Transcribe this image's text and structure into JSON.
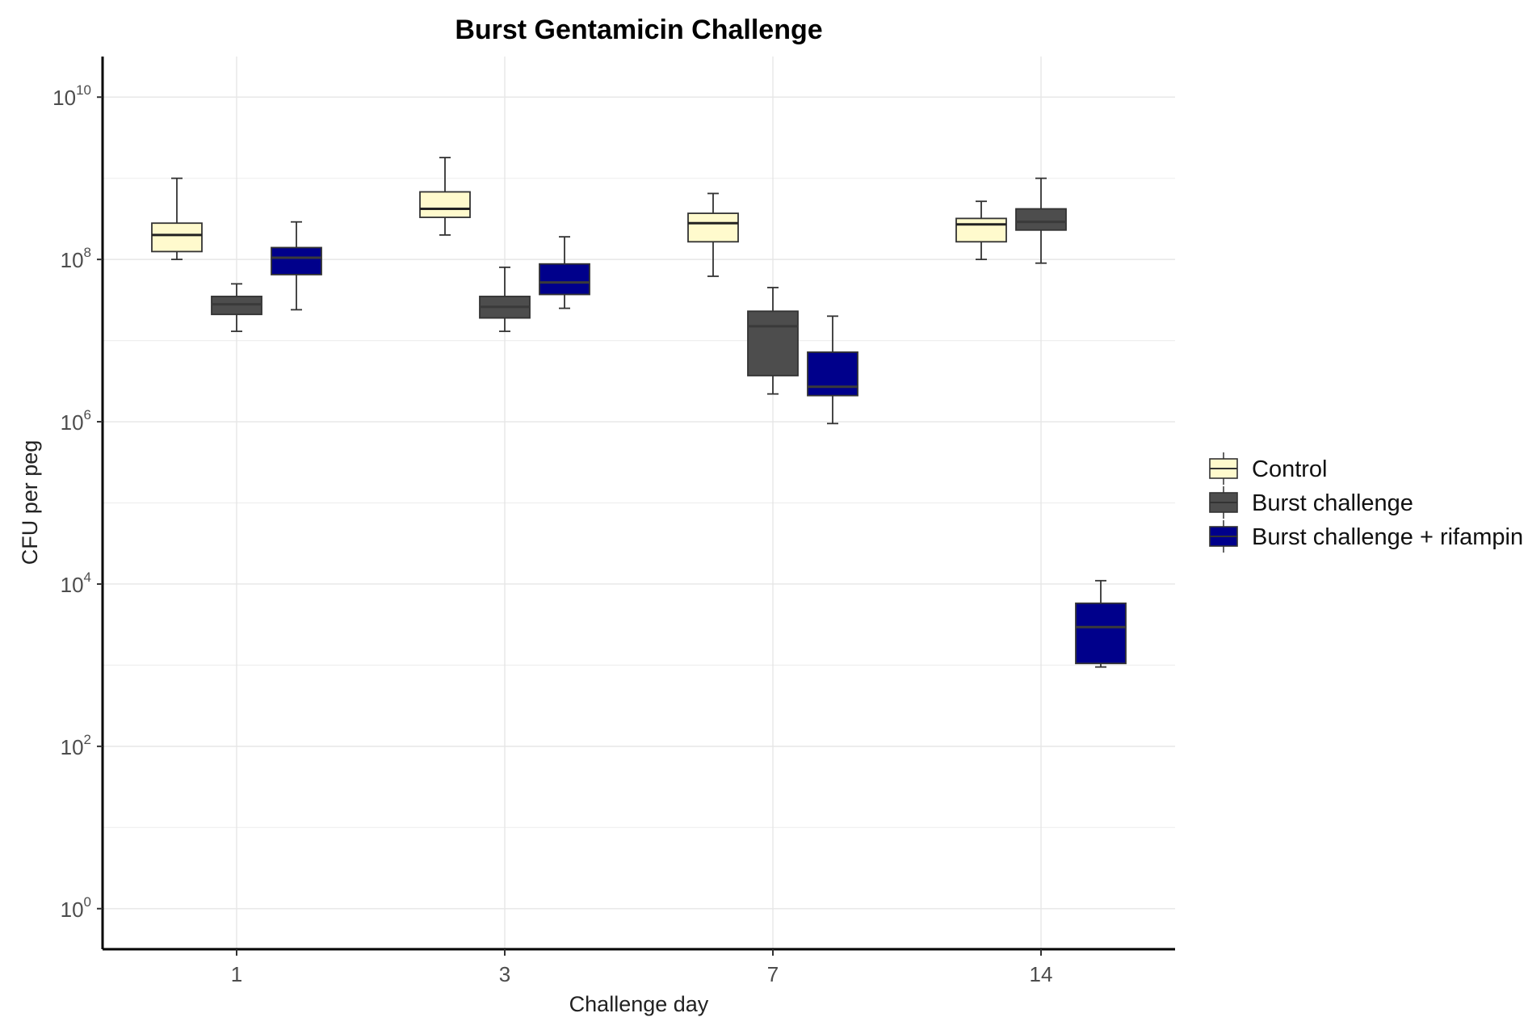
{
  "chart_data": {
    "type": "box",
    "title": "Burst Gentamicin Challenge",
    "xlabel": "Challenge day",
    "ylabel": "CFU per peg",
    "y_scale": "log10",
    "ylim_log10": [
      -0.5,
      10.5
    ],
    "y_ticks": [
      {
        "base": "10",
        "exp": "0",
        "value": 1
      },
      {
        "base": "10",
        "exp": "2",
        "value": 100
      },
      {
        "base": "10",
        "exp": "4",
        "value": 10000
      },
      {
        "base": "10",
        "exp": "6",
        "value": 1000000
      },
      {
        "base": "10",
        "exp": "8",
        "value": 100000000
      },
      {
        "base": "10",
        "exp": "10",
        "value": 10000000000
      }
    ],
    "categories": [
      "1",
      "3",
      "7",
      "14"
    ],
    "grid": true,
    "legend_position": "right",
    "series": [
      {
        "name": "Control",
        "color": "#FFFACD",
        "boxes": [
          {
            "min": 100000000,
            "q1": 125000000,
            "median": 200000000,
            "q3": 280000000,
            "max": 1000000000
          },
          {
            "min": 200000000,
            "q1": 330000000,
            "median": 420000000,
            "q3": 680000000,
            "max": 1800000000
          },
          {
            "min": 62000000,
            "q1": 165000000,
            "median": 280000000,
            "q3": 370000000,
            "max": 650000000
          },
          {
            "min": 100000000,
            "q1": 165000000,
            "median": 270000000,
            "q3": 320000000,
            "max": 520000000
          }
        ]
      },
      {
        "name": "Burst challenge",
        "color": "#4D4D4D",
        "boxes": [
          {
            "min": 13000000,
            "q1": 21000000,
            "median": 28000000,
            "q3": 35000000,
            "max": 50000000
          },
          {
            "min": 13000000,
            "q1": 19000000,
            "median": 26000000,
            "q3": 35000000,
            "max": 80000000
          },
          {
            "min": 2200000,
            "q1": 3700000,
            "median": 15000000,
            "q3": 23000000,
            "max": 45000000
          },
          {
            "min": 90000000,
            "q1": 230000000,
            "median": 290000000,
            "q3": 420000000,
            "max": 1000000000
          }
        ]
      },
      {
        "name": "Burst challenge + rifampin",
        "color": "#00008B",
        "boxes": [
          {
            "min": 24000000,
            "q1": 65000000,
            "median": 105000000,
            "q3": 140000000,
            "max": 290000000
          },
          {
            "min": 25000000,
            "q1": 37000000,
            "median": 52000000,
            "q3": 88000000,
            "max": 190000000
          },
          {
            "min": 950000,
            "q1": 2100000,
            "median": 2700000,
            "q3": 7200000,
            "max": 20000000
          },
          {
            "min": 950,
            "q1": 1050,
            "median": 2950,
            "q3": 5800,
            "max": 11000
          }
        ]
      }
    ]
  }
}
